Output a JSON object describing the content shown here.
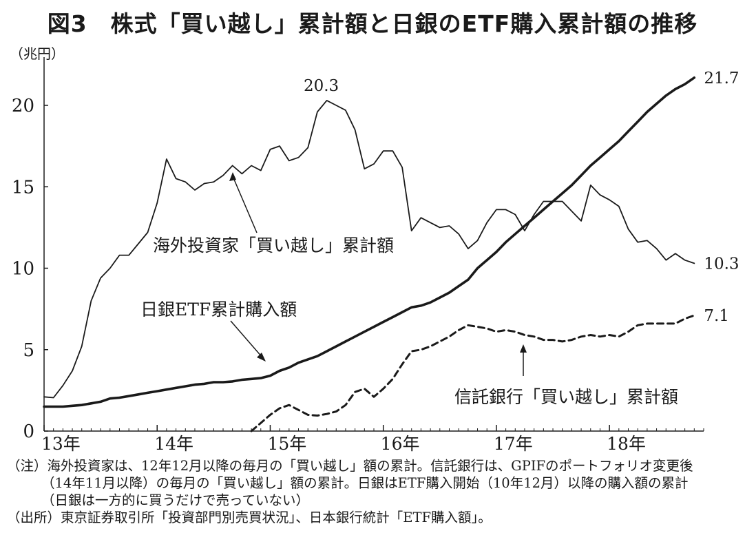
{
  "header": {
    "title": "図3　株式「買い越し」累計額と日銀のETF購入累計額の推移",
    "unit": "（兆円）"
  },
  "chart_data": {
    "type": "line",
    "title": "図3　株式「買い越し」累計額と日銀のETF購入累計額の推移",
    "ylabel": "（兆円）",
    "xlabel": "",
    "ylim": [
      0,
      22
    ],
    "yticks": [
      0,
      5,
      10,
      15,
      20
    ],
    "x_ticks": [
      {
        "label": "13年",
        "t": 0
      },
      {
        "label": "14年",
        "t": 12
      },
      {
        "label": "15年",
        "t": 24
      },
      {
        "label": "16年",
        "t": 36
      },
      {
        "label": "17年",
        "t": 48
      },
      {
        "label": "18年",
        "t": 60
      }
    ],
    "xlim": [
      0,
      70
    ],
    "series": [
      {
        "name": "海外投資家「買い越し」累計額",
        "style": "solid",
        "t0": 0,
        "values": [
          2.1,
          2.05,
          2.8,
          3.7,
          5.2,
          8.0,
          9.4,
          10.0,
          10.8,
          10.8,
          11.5,
          12.2,
          14.0,
          16.7,
          15.5,
          15.3,
          14.8,
          15.2,
          15.3,
          15.7,
          16.3,
          15.8,
          16.3,
          16.0,
          17.3,
          17.5,
          16.6,
          16.8,
          17.4,
          19.6,
          20.3,
          20.0,
          19.7,
          18.5,
          16.1,
          16.4,
          17.2,
          17.2,
          16.2,
          12.3,
          13.1,
          12.8,
          12.5,
          12.6,
          12.1,
          11.2,
          11.7,
          12.8,
          13.6,
          13.6,
          13.3,
          12.3,
          13.3,
          14.1,
          14.1,
          14.1,
          13.5,
          12.9,
          15.1,
          14.5,
          14.2,
          13.8,
          12.4,
          11.6,
          11.7,
          11.2,
          10.5,
          10.9,
          10.5,
          10.3
        ],
        "end_label": "10.3",
        "peak_label": "20.3",
        "peak_index": 30
      },
      {
        "name": "日銀ETF累計購入額",
        "style": "solid-thick",
        "t0": 0,
        "values": [
          1.5,
          1.5,
          1.5,
          1.55,
          1.6,
          1.7,
          1.8,
          2.0,
          2.05,
          2.15,
          2.25,
          2.35,
          2.45,
          2.55,
          2.65,
          2.75,
          2.85,
          2.9,
          3.0,
          3.0,
          3.05,
          3.15,
          3.2,
          3.25,
          3.4,
          3.7,
          3.9,
          4.2,
          4.4,
          4.6,
          4.9,
          5.2,
          5.5,
          5.8,
          6.1,
          6.4,
          6.7,
          7.0,
          7.3,
          7.6,
          7.7,
          7.9,
          8.2,
          8.5,
          8.9,
          9.3,
          10.0,
          10.5,
          11.0,
          11.6,
          12.1,
          12.6,
          13.1,
          13.6,
          14.1,
          14.6,
          15.1,
          15.7,
          16.3,
          16.8,
          17.3,
          17.8,
          18.4,
          19.0,
          19.6,
          20.1,
          20.6,
          21.0,
          21.3,
          21.7
        ],
        "end_label": "21.7"
      },
      {
        "name": "信託銀行「買い越し」累計額",
        "style": "dashed",
        "t0": 22,
        "values": [
          0.0,
          0.5,
          1.0,
          1.4,
          1.6,
          1.3,
          1.0,
          0.95,
          1.05,
          1.2,
          1.6,
          2.4,
          2.6,
          2.1,
          2.6,
          3.2,
          4.1,
          4.9,
          5.0,
          5.2,
          5.5,
          5.8,
          6.2,
          6.5,
          6.4,
          6.3,
          6.1,
          6.2,
          6.1,
          5.9,
          5.8,
          5.6,
          5.6,
          5.5,
          5.6,
          5.8,
          5.9,
          5.8,
          5.9,
          5.8,
          6.1,
          6.5,
          6.6,
          6.6,
          6.6,
          6.6,
          6.9,
          7.1
        ],
        "end_label": "7.1"
      }
    ],
    "annotations": [
      {
        "text": "海外投資家「買い越し」累計額",
        "points_to": "海外投資家「買い越し」累計額"
      },
      {
        "text": "日銀ETF累計購入額",
        "points_to": "日銀ETF累計購入額"
      },
      {
        "text": "信託銀行「買い越し」累計額",
        "points_to": "信託銀行「買い越し」累計額"
      }
    ]
  },
  "notes": {
    "line1": "（注）海外投資家は、12年12月以降の毎月の「買い越し」額の累計。信託銀行は、GPIFのポートフォリオ変更後",
    "line2": "（14年11月以降）の毎月の「買い越し」額の累計。日銀はETF購入開始（10年12月）以降の購入額の累計",
    "line3": "（日銀は一方的に買うだけで売っていない）",
    "source": "（出所）東京証券取引所「投資部門別売買状況」、日本銀行統計「ETF購入額」。"
  }
}
